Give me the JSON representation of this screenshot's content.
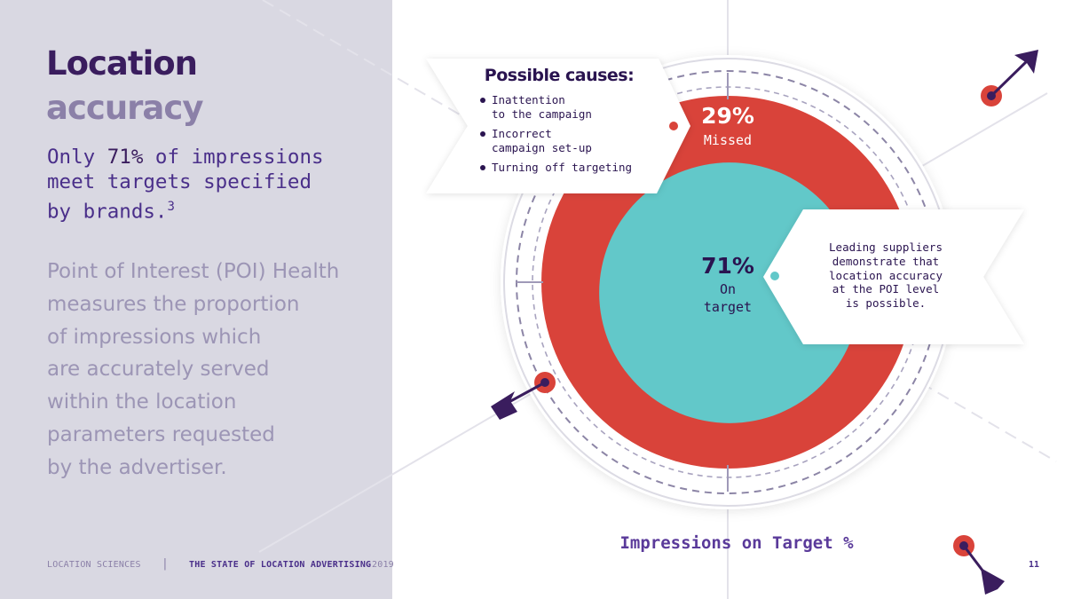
{
  "title": {
    "line1": "Location",
    "line2": "accuracy"
  },
  "stat": {
    "prefix": "Only ",
    "highlight": "71%",
    "rest_line1": " of impressions",
    "line2": "meet targets specified",
    "line3": "by brands.",
    "footnote": "3"
  },
  "description": [
    "Point of Interest (POI) Health",
    "measures the proportion",
    "of impressions which",
    "are accurately served",
    "within the location",
    "parameters requested",
    "by the advertiser."
  ],
  "callout": {
    "title": "Possible causes:",
    "causes": [
      "Inattention\nto the campaign",
      "Incorrect\ncampaign set-up",
      "Turning off targeting"
    ]
  },
  "note": "Leading suppliers\ndemonstrate that\nlocation accuracy\nat the POI level\nis possible.",
  "chart_data": {
    "type": "pie",
    "title": "Impressions on Target %",
    "categories": [
      "Missed",
      "On target"
    ],
    "values": [
      29,
      71
    ],
    "labels": {
      "missed_value": "29%",
      "missed_label": "Missed",
      "ontarget_value": "71%",
      "ontarget_label_1": "On",
      "ontarget_label_2": "target"
    },
    "colors": {
      "missed": "#d9433a",
      "on_target": "#62c8c9"
    }
  },
  "footer": {
    "company": "LOCATION SCIENCES",
    "separator": "|",
    "report": "THE STATE OF LOCATION ADVERTISING",
    "year": "2019",
    "page": "11"
  },
  "colors": {
    "panel": "#d9d8e2",
    "primary": "#3a1d5e",
    "muted": "#8b80a8",
    "accent_red": "#d9433a",
    "accent_teal": "#62c8c9"
  }
}
